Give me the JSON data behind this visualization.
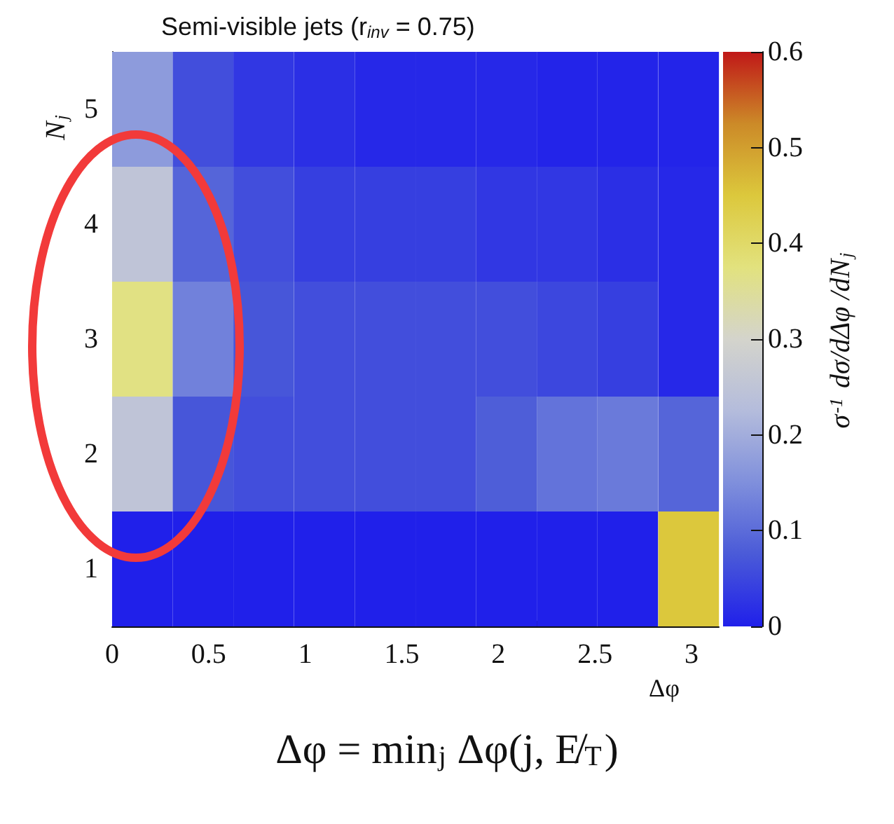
{
  "chart_data": {
    "type": "heatmap",
    "title": "Semi-visible jets (r$_{inv}$ = 0.75)",
    "xlabel": "Δφ",
    "ylabel": "N$_{j}$",
    "clabel": "σ$^{-1}$ dσ/dΔφ /dN$_{j}$",
    "x": [
      0.157,
      0.471,
      0.785,
      1.1,
      1.414,
      1.728,
      2.042,
      2.356,
      2.67,
      2.985
    ],
    "xlim": [
      0,
      3.1416
    ],
    "xticks": [
      0,
      0.5,
      1,
      1.5,
      2,
      2.5,
      3
    ],
    "y_categories": [
      "5",
      "4",
      "3",
      "2",
      "1"
    ],
    "cells": [
      [
        0.17,
        0.06,
        0.03,
        0.02,
        0.01,
        0.01,
        0.01,
        0.005,
        0.005,
        0.005
      ],
      [
        0.25,
        0.09,
        0.06,
        0.04,
        0.04,
        0.04,
        0.03,
        0.03,
        0.02,
        0.01
      ],
      [
        0.37,
        0.13,
        0.07,
        0.06,
        0.06,
        0.06,
        0.06,
        0.05,
        0.04,
        0.01
      ],
      [
        0.25,
        0.07,
        0.06,
        0.06,
        0.06,
        0.06,
        0.08,
        0.11,
        0.12,
        0.09
      ],
      [
        0,
        0,
        0,
        0,
        0,
        0,
        0,
        0,
        0,
        0.45
      ]
    ],
    "clim": [
      0,
      0.6
    ],
    "cticks": [
      0,
      0.1,
      0.2,
      0.3,
      0.4,
      0.5,
      0.6
    ],
    "annotations": [
      "Δφ = min$_{j}$ Δφ(j, E̸$_{T}$)"
    ]
  }
}
